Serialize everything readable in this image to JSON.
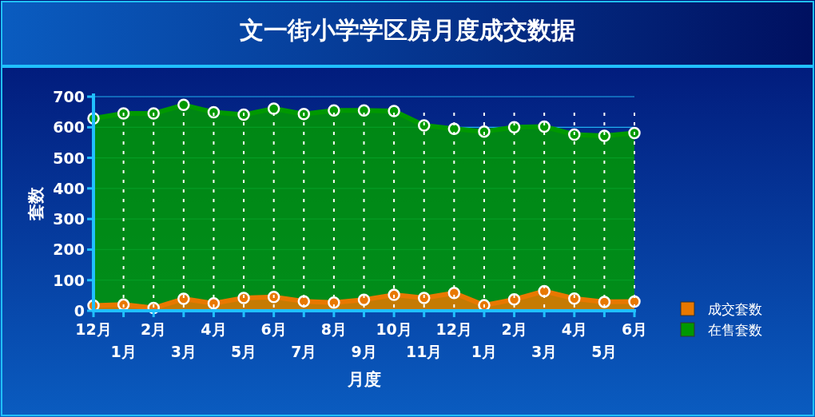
{
  "chart_data": {
    "type": "area",
    "title": "文一街小学学区房月度成交数据",
    "xlabel": "月度",
    "ylabel": "套数",
    "categories": [
      "12月",
      "1月",
      "2月",
      "3月",
      "4月",
      "5月",
      "6月",
      "7月",
      "8月",
      "9月",
      "10月",
      "11月",
      "12月",
      "1月",
      "2月",
      "3月",
      "4月",
      "5月",
      "6月"
    ],
    "series": [
      {
        "name": "成交套数",
        "color": "#e87800",
        "values": [
          17,
          20,
          9,
          39,
          24,
          42,
          45,
          31,
          27,
          36,
          52,
          42,
          58,
          18,
          37,
          64,
          40,
          29,
          30
        ]
      },
      {
        "name": "在售套数",
        "color": "#009900",
        "values": [
          629,
          645,
          645,
          673,
          649,
          641,
          661,
          643,
          655,
          655,
          653,
          606,
          595,
          586,
          600,
          602,
          576,
          572,
          581
        ]
      }
    ],
    "ylim": [
      0,
      700
    ],
    "yticks": [
      0,
      100,
      200,
      300,
      400,
      500,
      600,
      700
    ],
    "grid": true,
    "legend": "right",
    "marker": "circle"
  }
}
